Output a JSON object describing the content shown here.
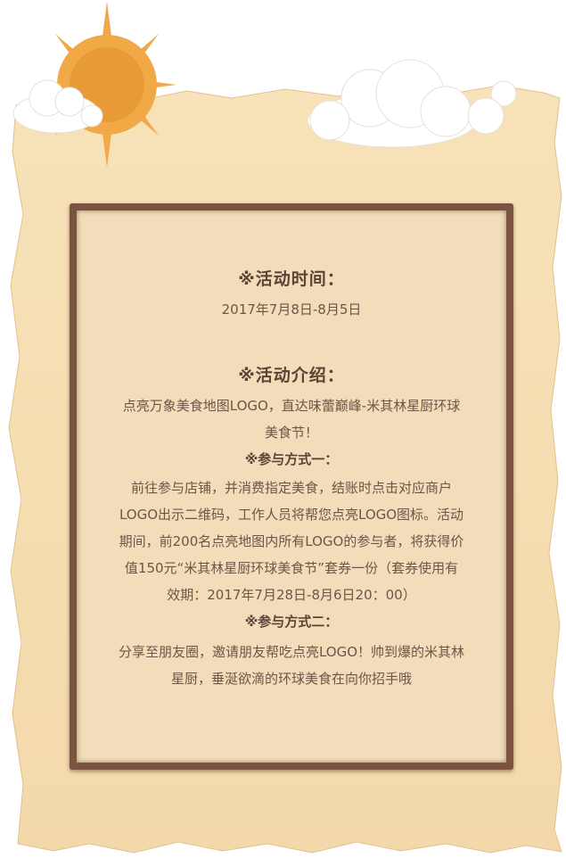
{
  "event": {
    "time_heading": "※活动时间：",
    "time_value": "2017年7月8日-8月5日",
    "intro_heading": "※活动介绍：",
    "intro_lines": [
      "点亮万象美食地图LOGO，直达味蕾巅峰-米其林星厨环球",
      "美食节！"
    ],
    "method1_heading": "※参与方式一：",
    "method1_lines": [
      "前往参与店铺，并消费指定美食，结账时点击对应商户",
      "LOGO出示二维码，工作人员将帮您点亮LOGO图标。活动",
      "期间，前200名点亮地图内所有LOGO的参与者，将获得价",
      "值150元“米其林星厨环球美食节”套券一份（套券使用有",
      "效期：2017年7月28日-8月6日20：00）"
    ],
    "method2_heading": "※参与方式二：",
    "method2_lines": [
      "分享至朋友圈，邀请朋友帮吃点亮LOGO！帅到爆的米其林",
      "星厨，垂涎欲滴的环球美食在向你招手哦"
    ]
  },
  "colors": {
    "paper": "#f6dfb5",
    "frame": "#7a5440",
    "sun": "#f0a84a",
    "text": "#6f5448"
  }
}
